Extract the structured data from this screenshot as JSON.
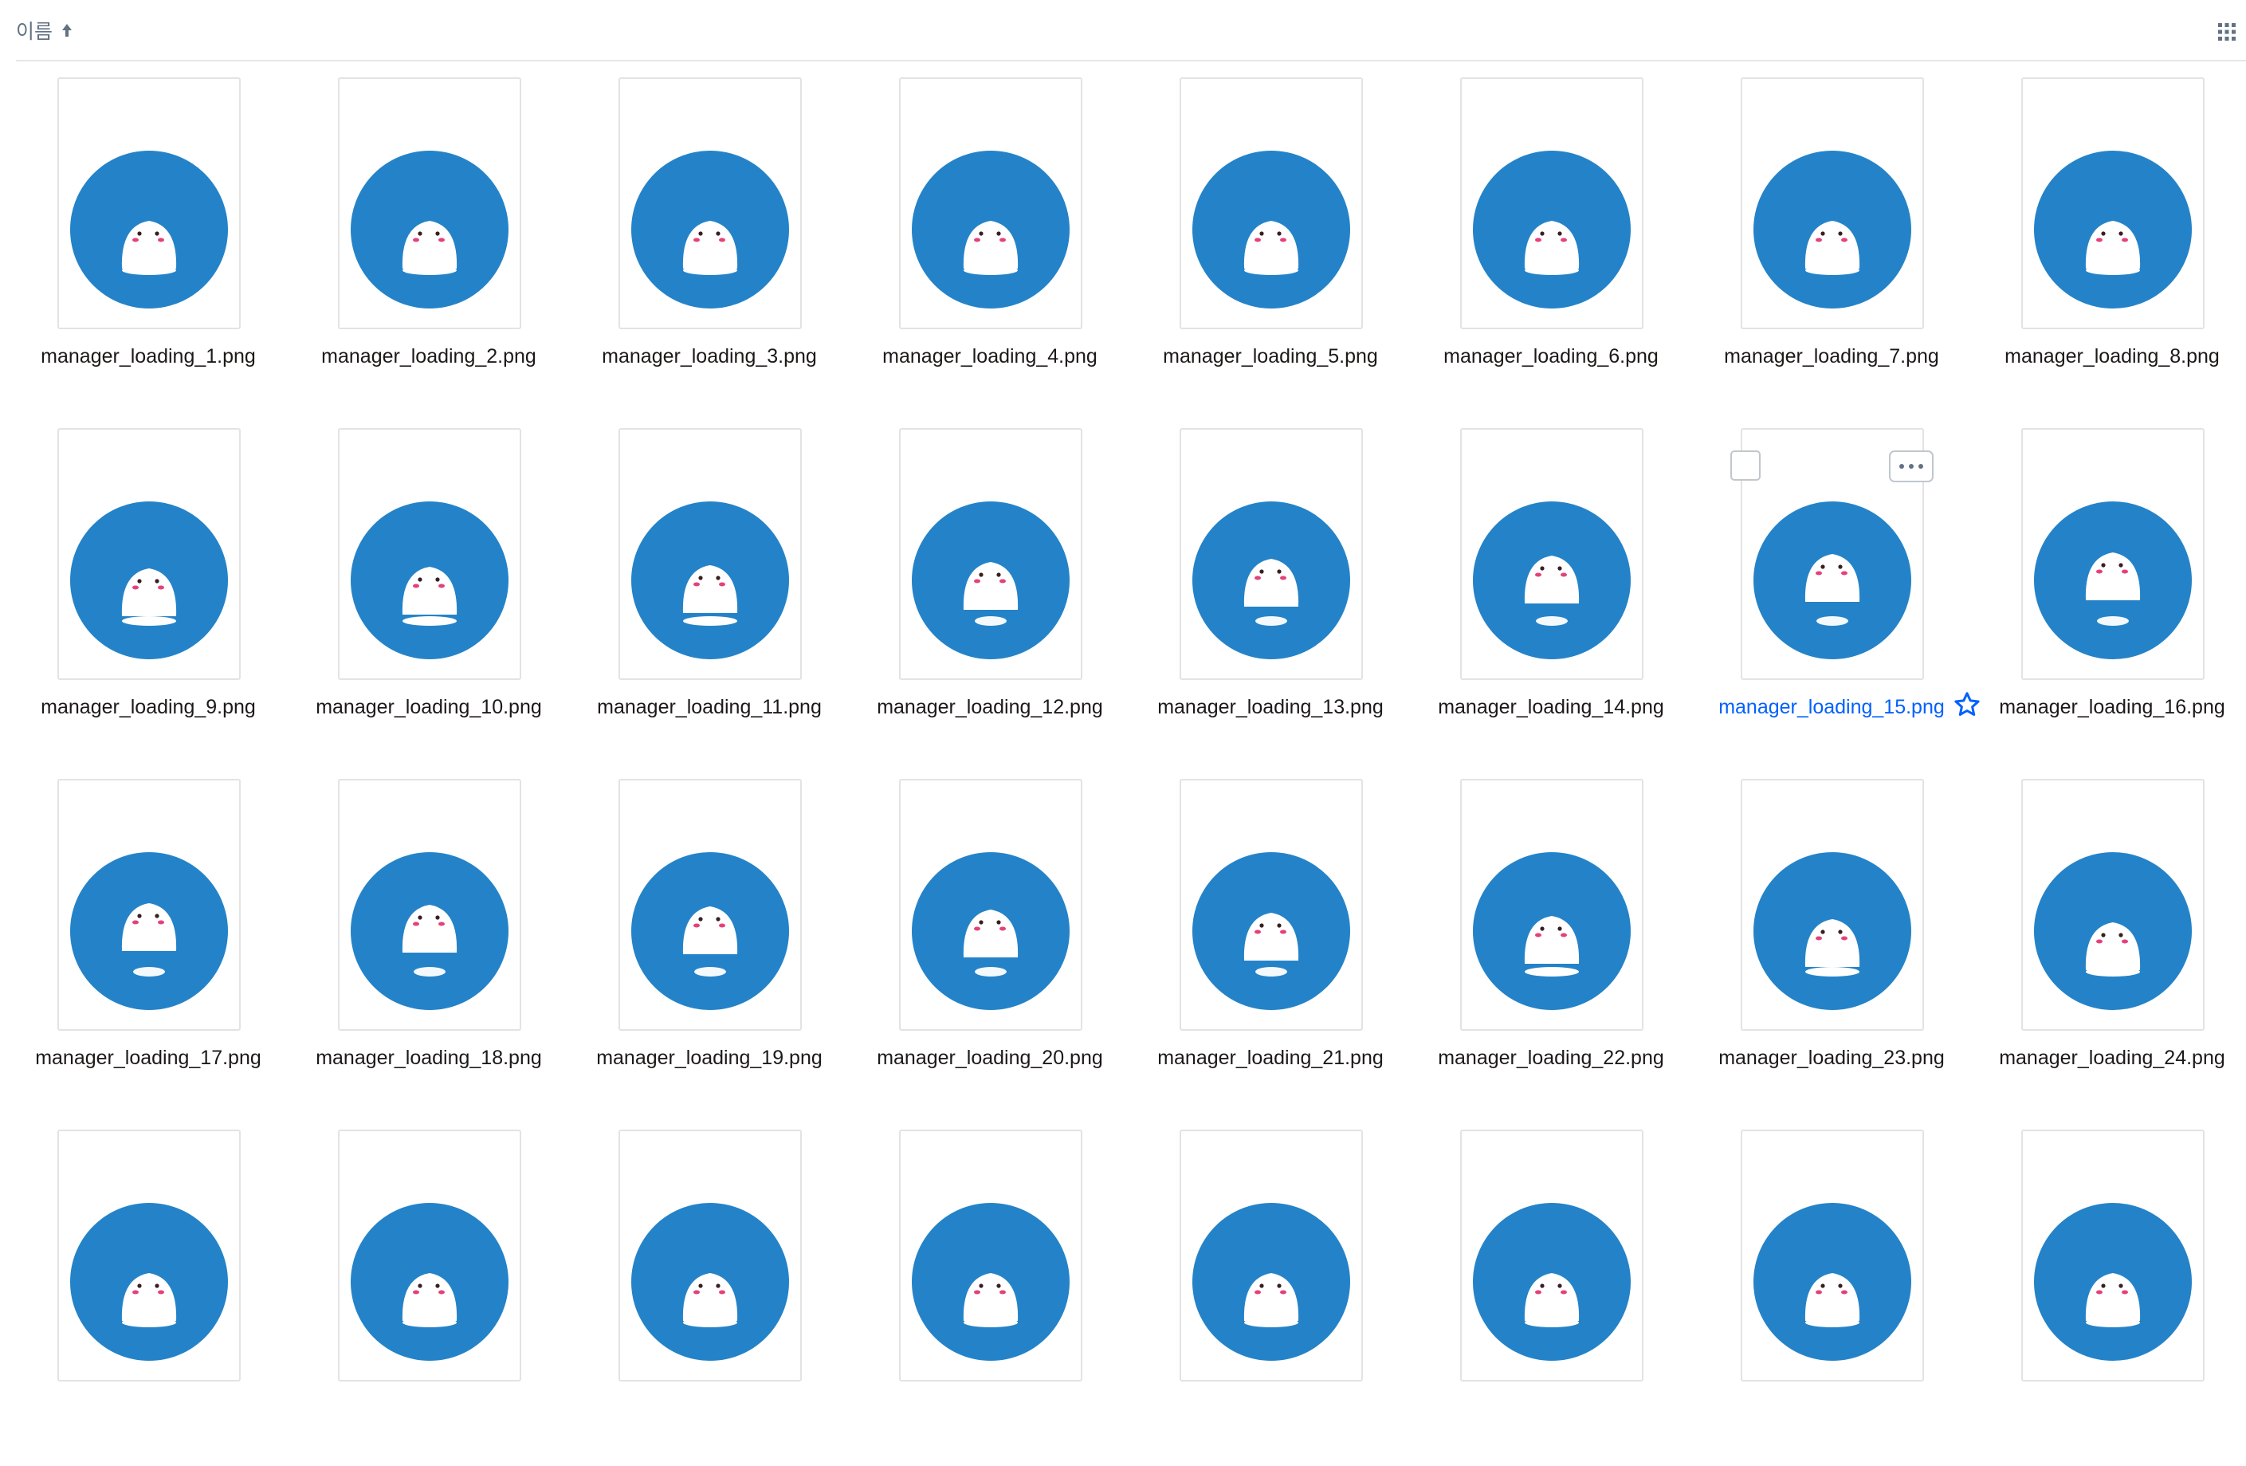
{
  "header": {
    "sort_label": "이름",
    "sort_direction_icon": "arrow-up-icon",
    "view_toggle_icon": "grid-view-icon"
  },
  "files": [
    {
      "name": "manager_loading_1.png"
    },
    {
      "name": "manager_loading_2.png"
    },
    {
      "name": "manager_loading_3.png"
    },
    {
      "name": "manager_loading_4.png"
    },
    {
      "name": "manager_loading_5.png"
    },
    {
      "name": "manager_loading_6.png"
    },
    {
      "name": "manager_loading_7.png"
    },
    {
      "name": "manager_loading_8.png"
    },
    {
      "name": "manager_loading_9.png"
    },
    {
      "name": "manager_loading_10.png"
    },
    {
      "name": "manager_loading_11.png"
    },
    {
      "name": "manager_loading_12.png"
    },
    {
      "name": "manager_loading_13.png"
    },
    {
      "name": "manager_loading_14.png"
    },
    {
      "name": "manager_loading_15.png",
      "hovered": true
    },
    {
      "name": "manager_loading_16.png"
    },
    {
      "name": "manager_loading_17.png"
    },
    {
      "name": "manager_loading_18.png"
    },
    {
      "name": "manager_loading_19.png"
    },
    {
      "name": "manager_loading_20.png"
    },
    {
      "name": "manager_loading_21.png"
    },
    {
      "name": "manager_loading_22.png"
    },
    {
      "name": "manager_loading_23.png"
    },
    {
      "name": "manager_loading_24.png"
    },
    {
      "name": ""
    },
    {
      "name": ""
    },
    {
      "name": ""
    },
    {
      "name": ""
    },
    {
      "name": ""
    },
    {
      "name": ""
    },
    {
      "name": ""
    },
    {
      "name": ""
    }
  ],
  "colors": {
    "thumbnail_circle": "#2483c8",
    "hover_link": "#0061fe",
    "cheek": "#e4417a",
    "eye": "#3a1f1f"
  }
}
